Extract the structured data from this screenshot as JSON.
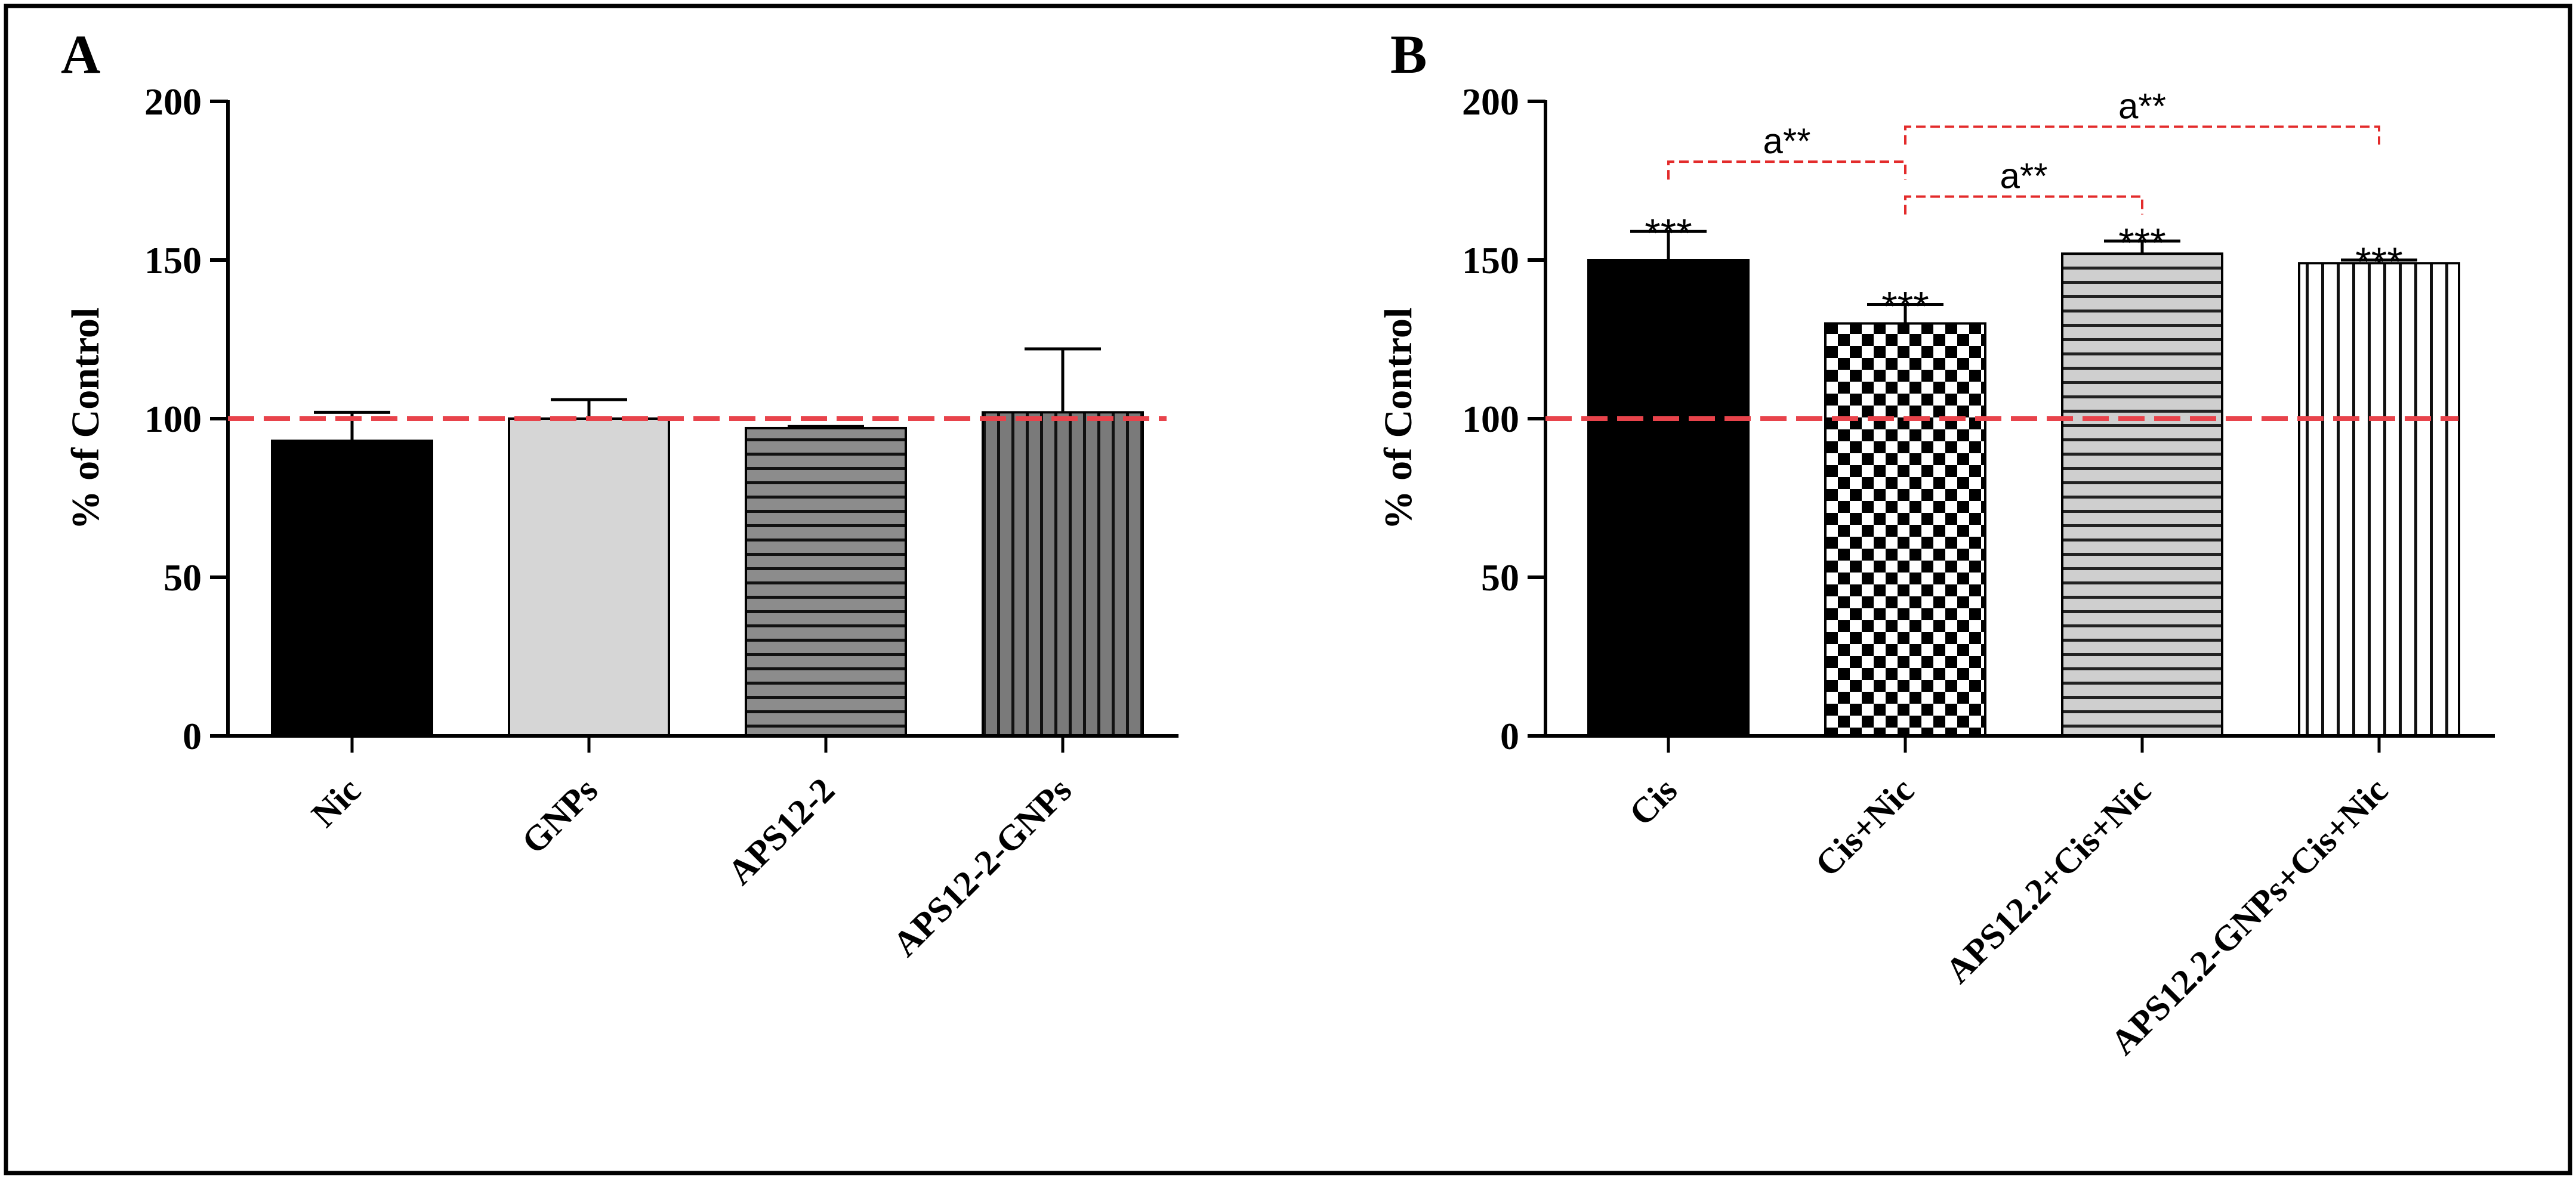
{
  "figure": {
    "background": "#ffffff",
    "frame_color": "#000000",
    "reference_line_color": "#e8434b",
    "bracket_color": "#e32b2b"
  },
  "chart_data": [
    {
      "type": "bar",
      "panel_label": "A",
      "title": "",
      "xlabel": "",
      "ylabel": "% of Control",
      "ylim": [
        0,
        200
      ],
      "yticks": [
        "0",
        "50",
        "100",
        "150",
        "200"
      ],
      "ytick_values": [
        0,
        50,
        100,
        150,
        200
      ],
      "grid": false,
      "categories": [
        "Nic",
        "GNPs",
        "APS12-2",
        "APS12-2-GNPs"
      ],
      "values": [
        93,
        100,
        97,
        102
      ],
      "errors": [
        9,
        6,
        0.5,
        20
      ],
      "patterns": [
        "solid-black",
        "solid-lightgray",
        "horizontal-stripes-gray",
        "vertical-stripes-darkgray"
      ],
      "reference_line": 100,
      "significance_labels": [],
      "brackets": []
    },
    {
      "type": "bar",
      "panel_label": "B",
      "title": "",
      "xlabel": "",
      "ylabel": "% of Control",
      "ylim": [
        0,
        200
      ],
      "yticks": [
        "0",
        "50",
        "100",
        "150",
        "200"
      ],
      "ytick_values": [
        0,
        50,
        100,
        150,
        200
      ],
      "grid": false,
      "categories": [
        "Cis",
        "Cis+Nic",
        "APS12.2+Cis+Nic",
        "APS12.2-GNPs+Cis+Nic"
      ],
      "values": [
        150,
        130,
        152,
        149
      ],
      "errors": [
        9,
        6,
        4,
        1
      ],
      "patterns": [
        "solid-black",
        "checkerboard",
        "horizontal-stripes-lightgray",
        "vertical-stripes-white"
      ],
      "reference_line": 100,
      "significance_labels": [
        "***",
        "***",
        "***",
        "***"
      ],
      "brackets": [
        {
          "from": 0,
          "to": 1,
          "label": "a**",
          "y": 181
        },
        {
          "from": 1,
          "to": 2,
          "label": "a**",
          "y": 170
        },
        {
          "from": 1,
          "to": 3,
          "label": "a**",
          "y": 192
        }
      ]
    }
  ]
}
